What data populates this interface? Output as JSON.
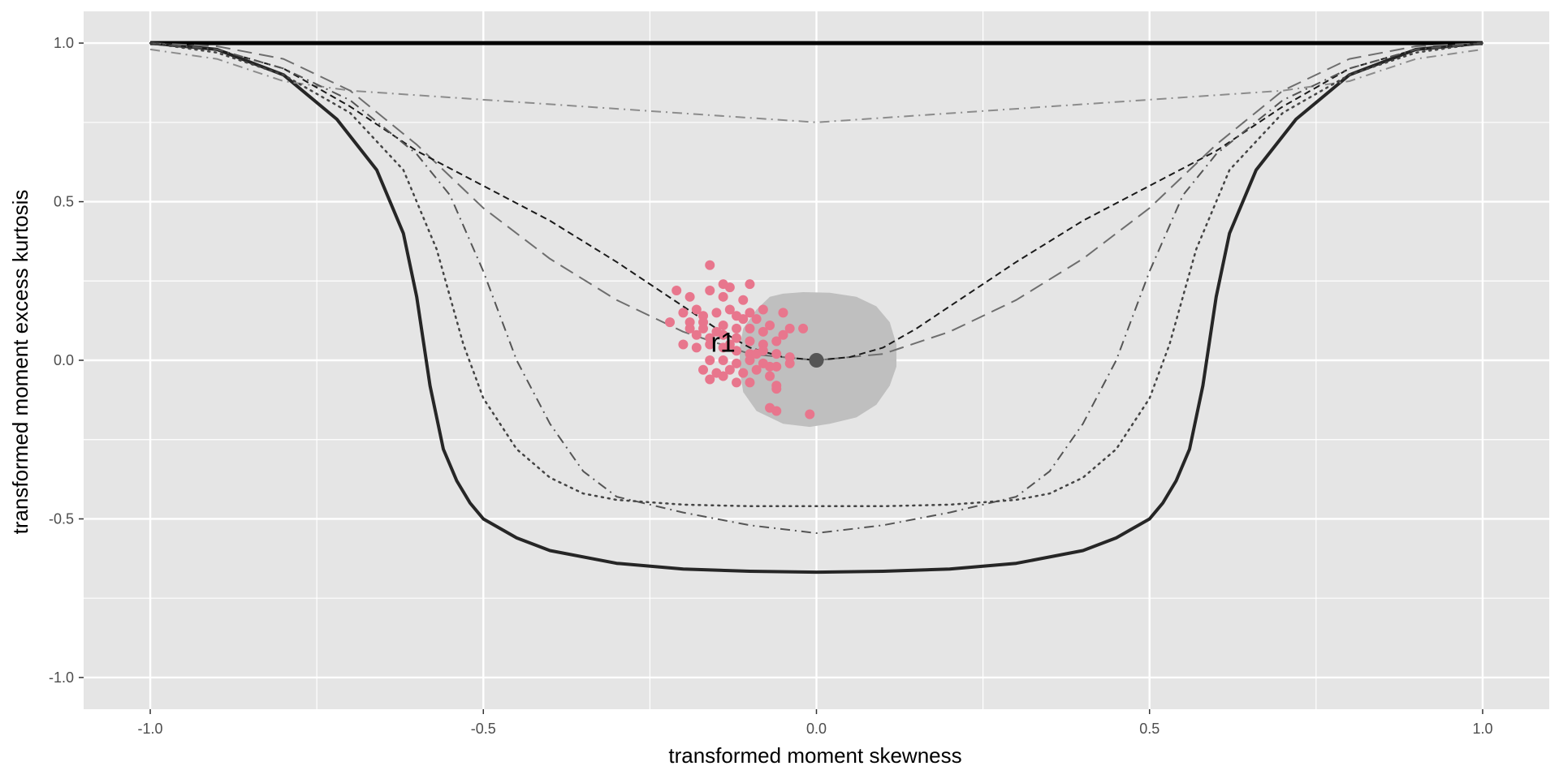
{
  "chart_data": {
    "type": "scatter",
    "xlabel": "transformed moment skewness",
    "ylabel": "transformed moment excess kurtosis",
    "xlim": [
      -1.1,
      1.1
    ],
    "ylim": [
      -1.1,
      1.1
    ],
    "x_ticks": [
      -1.0,
      -0.5,
      0.0,
      0.5,
      1.0
    ],
    "y_ticks": [
      -1.0,
      -0.5,
      0.0,
      0.5,
      1.0
    ],
    "x_tick_labels": [
      "-1.0",
      "-0.5",
      "0.0",
      "0.5",
      "1.0"
    ],
    "y_tick_labels": [
      "-1.0",
      "-0.5",
      "0.0",
      "0.5",
      "1.0"
    ],
    "grid": true,
    "colors": {
      "panel": "#e5e5e5",
      "grid": "#ffffff",
      "points": "#e8768d",
      "region": "#bfbfbf",
      "center": "#555555"
    },
    "annotation": {
      "text": "r1",
      "x": -0.14,
      "y": 0.05
    },
    "center_point": {
      "x": 0.0,
      "y": 0.0
    },
    "region": {
      "fill": "#bfbfbf",
      "points": [
        [
          -0.05,
          0.21
        ],
        [
          -0.02,
          0.215
        ],
        [
          0.02,
          0.213
        ],
        [
          0.06,
          0.2
        ],
        [
          0.09,
          0.17
        ],
        [
          0.11,
          0.12
        ],
        [
          0.12,
          0.05
        ],
        [
          0.12,
          -0.02
        ],
        [
          0.11,
          -0.08
        ],
        [
          0.09,
          -0.14
        ],
        [
          0.06,
          -0.18
        ],
        [
          0.02,
          -0.2
        ],
        [
          -0.01,
          -0.21
        ],
        [
          -0.05,
          -0.2
        ],
        [
          -0.09,
          -0.16
        ],
        [
          -0.11,
          -0.1
        ],
        [
          -0.115,
          -0.03
        ],
        [
          -0.115,
          0.04
        ],
        [
          -0.11,
          0.1
        ],
        [
          -0.09,
          0.16
        ],
        [
          -0.07,
          0.2
        ]
      ]
    },
    "lines": [
      {
        "style": "solid",
        "width": 5,
        "color": "#000000",
        "points": [
          [
            -1.0,
            1.0
          ],
          [
            1.0,
            1.0
          ]
        ]
      },
      {
        "style": "solid",
        "width": 4,
        "color": "#262626",
        "points": [
          [
            -1.0,
            1.0
          ],
          [
            -0.9,
            0.98
          ],
          [
            -0.8,
            0.9
          ],
          [
            -0.72,
            0.76
          ],
          [
            -0.66,
            0.6
          ],
          [
            -0.62,
            0.4
          ],
          [
            -0.6,
            0.2
          ],
          [
            -0.58,
            -0.08
          ],
          [
            -0.56,
            -0.28
          ],
          [
            -0.54,
            -0.38
          ],
          [
            -0.52,
            -0.45
          ],
          [
            -0.5,
            -0.5
          ],
          [
            -0.45,
            -0.56
          ],
          [
            -0.4,
            -0.6
          ],
          [
            -0.3,
            -0.64
          ],
          [
            -0.2,
            -0.658
          ],
          [
            -0.1,
            -0.665
          ],
          [
            0.0,
            -0.668
          ],
          [
            0.1,
            -0.665
          ],
          [
            0.2,
            -0.658
          ],
          [
            0.3,
            -0.64
          ],
          [
            0.4,
            -0.6
          ],
          [
            0.45,
            -0.56
          ],
          [
            0.5,
            -0.5
          ],
          [
            0.52,
            -0.45
          ],
          [
            0.54,
            -0.38
          ],
          [
            0.56,
            -0.28
          ],
          [
            0.58,
            -0.08
          ],
          [
            0.6,
            0.2
          ],
          [
            0.62,
            0.4
          ],
          [
            0.66,
            0.6
          ],
          [
            0.72,
            0.76
          ],
          [
            0.8,
            0.9
          ],
          [
            0.9,
            0.98
          ],
          [
            1.0,
            1.0
          ]
        ]
      },
      {
        "style": "dashdot",
        "width": 2,
        "color": "#8c8c8c",
        "points": [
          [
            -1.0,
            0.98
          ],
          [
            -0.9,
            0.95
          ],
          [
            -0.8,
            0.88
          ],
          [
            -0.7,
            0.85
          ],
          [
            0.0,
            0.75
          ],
          [
            0.7,
            0.85
          ],
          [
            0.8,
            0.88
          ],
          [
            0.9,
            0.95
          ],
          [
            1.0,
            0.98
          ]
        ]
      },
      {
        "style": "longdash",
        "width": 2,
        "color": "#6e6e6e",
        "points": [
          [
            -1.0,
            1.0
          ],
          [
            -0.9,
            0.99
          ],
          [
            -0.8,
            0.95
          ],
          [
            -0.7,
            0.85
          ],
          [
            -0.6,
            0.68
          ],
          [
            -0.5,
            0.48
          ],
          [
            -0.4,
            0.32
          ],
          [
            -0.3,
            0.19
          ],
          [
            -0.2,
            0.09
          ],
          [
            -0.1,
            0.02
          ],
          [
            0.0,
            0.0
          ],
          [
            0.1,
            0.02
          ],
          [
            0.2,
            0.09
          ],
          [
            0.3,
            0.19
          ],
          [
            0.4,
            0.32
          ],
          [
            0.5,
            0.48
          ],
          [
            0.6,
            0.68
          ],
          [
            0.7,
            0.85
          ],
          [
            0.8,
            0.95
          ],
          [
            0.9,
            0.99
          ],
          [
            1.0,
            1.0
          ]
        ]
      },
      {
        "style": "dashed",
        "width": 2,
        "color": "#1a1a1a",
        "points": [
          [
            -1.0,
            1.0
          ],
          [
            -0.9,
            0.98
          ],
          [
            -0.8,
            0.92
          ],
          [
            -0.7,
            0.8
          ],
          [
            -0.6,
            0.66
          ],
          [
            -0.5,
            0.55
          ],
          [
            -0.4,
            0.44
          ],
          [
            -0.3,
            0.31
          ],
          [
            -0.2,
            0.17
          ],
          [
            -0.15,
            0.1
          ],
          [
            -0.1,
            0.04
          ],
          [
            -0.05,
            0.01
          ],
          [
            0.0,
            0.0
          ],
          [
            0.05,
            0.01
          ],
          [
            0.1,
            0.04
          ],
          [
            0.15,
            0.1
          ],
          [
            0.2,
            0.17
          ],
          [
            0.3,
            0.31
          ],
          [
            0.4,
            0.44
          ],
          [
            0.5,
            0.55
          ],
          [
            0.6,
            0.66
          ],
          [
            0.7,
            0.8
          ],
          [
            0.8,
            0.92
          ],
          [
            0.9,
            0.98
          ],
          [
            1.0,
            1.0
          ]
        ]
      },
      {
        "style": "dashdot",
        "width": 2,
        "color": "#555555",
        "points": [
          [
            -1.0,
            1.0
          ],
          [
            -0.9,
            0.98
          ],
          [
            -0.8,
            0.92
          ],
          [
            -0.7,
            0.82
          ],
          [
            -0.6,
            0.65
          ],
          [
            -0.55,
            0.52
          ],
          [
            -0.5,
            0.28
          ],
          [
            -0.45,
            0.0
          ],
          [
            -0.4,
            -0.2
          ],
          [
            -0.35,
            -0.35
          ],
          [
            -0.3,
            -0.43
          ],
          [
            -0.2,
            -0.48
          ],
          [
            -0.1,
            -0.52
          ],
          [
            0.0,
            -0.545
          ],
          [
            0.1,
            -0.52
          ],
          [
            0.2,
            -0.48
          ],
          [
            0.3,
            -0.43
          ],
          [
            0.35,
            -0.35
          ],
          [
            0.4,
            -0.2
          ],
          [
            0.45,
            0.0
          ],
          [
            0.5,
            0.28
          ],
          [
            0.55,
            0.52
          ],
          [
            0.6,
            0.65
          ],
          [
            0.7,
            0.82
          ],
          [
            0.8,
            0.92
          ],
          [
            0.9,
            0.98
          ],
          [
            1.0,
            1.0
          ]
        ]
      },
      {
        "style": "dotted",
        "width": 2.5,
        "color": "#444444",
        "points": [
          [
            -1.0,
            1.0
          ],
          [
            -0.9,
            0.97
          ],
          [
            -0.8,
            0.9
          ],
          [
            -0.7,
            0.78
          ],
          [
            -0.62,
            0.6
          ],
          [
            -0.57,
            0.35
          ],
          [
            -0.53,
            0.05
          ],
          [
            -0.5,
            -0.12
          ],
          [
            -0.45,
            -0.28
          ],
          [
            -0.4,
            -0.37
          ],
          [
            -0.35,
            -0.42
          ],
          [
            -0.3,
            -0.44
          ],
          [
            -0.2,
            -0.455
          ],
          [
            -0.1,
            -0.46
          ],
          [
            0.0,
            -0.46
          ],
          [
            0.1,
            -0.46
          ],
          [
            0.2,
            -0.455
          ],
          [
            0.3,
            -0.44
          ],
          [
            0.35,
            -0.42
          ],
          [
            0.4,
            -0.37
          ],
          [
            0.45,
            -0.28
          ],
          [
            0.5,
            -0.12
          ],
          [
            0.53,
            0.05
          ],
          [
            0.57,
            0.35
          ],
          [
            0.62,
            0.6
          ],
          [
            0.7,
            0.78
          ],
          [
            0.8,
            0.9
          ],
          [
            0.9,
            0.97
          ],
          [
            1.0,
            1.0
          ]
        ]
      }
    ],
    "points": [
      [
        -0.21,
        0.22
      ],
      [
        -0.16,
        0.3
      ],
      [
        -0.19,
        0.2
      ],
      [
        -0.16,
        0.22
      ],
      [
        -0.13,
        0.23
      ],
      [
        -0.14,
        0.24
      ],
      [
        -0.1,
        0.24
      ],
      [
        -0.11,
        0.19
      ],
      [
        -0.14,
        0.2
      ],
      [
        -0.18,
        0.16
      ],
      [
        -0.2,
        0.15
      ],
      [
        -0.22,
        0.12
      ],
      [
        -0.19,
        0.12
      ],
      [
        -0.17,
        0.14
      ],
      [
        -0.15,
        0.15
      ],
      [
        -0.13,
        0.16
      ],
      [
        -0.12,
        0.14
      ],
      [
        -0.1,
        0.15
      ],
      [
        -0.08,
        0.16
      ],
      [
        -0.05,
        0.15
      ],
      [
        -0.09,
        0.13
      ],
      [
        -0.07,
        0.11
      ],
      [
        -0.04,
        0.1
      ],
      [
        -0.02,
        0.1
      ],
      [
        -0.05,
        0.08
      ],
      [
        -0.19,
        0.1
      ],
      [
        -0.17,
        0.1
      ],
      [
        -0.14,
        0.11
      ],
      [
        -0.12,
        0.1
      ],
      [
        -0.1,
        0.1
      ],
      [
        -0.08,
        0.09
      ],
      [
        -0.06,
        0.06
      ],
      [
        -0.18,
        0.08
      ],
      [
        -0.16,
        0.07
      ],
      [
        -0.14,
        0.08
      ],
      [
        -0.12,
        0.07
      ],
      [
        -0.1,
        0.06
      ],
      [
        -0.08,
        0.05
      ],
      [
        -0.2,
        0.05
      ],
      [
        -0.18,
        0.04
      ],
      [
        -0.16,
        0.05
      ],
      [
        -0.14,
        0.04
      ],
      [
        -0.12,
        0.03
      ],
      [
        -0.1,
        0.02
      ],
      [
        -0.08,
        0.03
      ],
      [
        -0.06,
        0.02
      ],
      [
        -0.04,
        0.01
      ],
      [
        -0.16,
        0.0
      ],
      [
        -0.14,
        0.0
      ],
      [
        -0.12,
        -0.01
      ],
      [
        -0.1,
        0.0
      ],
      [
        -0.08,
        -0.01
      ],
      [
        -0.06,
        -0.02
      ],
      [
        -0.04,
        -0.01
      ],
      [
        -0.17,
        -0.03
      ],
      [
        -0.15,
        -0.04
      ],
      [
        -0.13,
        -0.03
      ],
      [
        -0.11,
        -0.04
      ],
      [
        -0.09,
        -0.03
      ],
      [
        -0.07,
        -0.02
      ],
      [
        -0.16,
        -0.06
      ],
      [
        -0.14,
        -0.05
      ],
      [
        -0.12,
        -0.07
      ],
      [
        -0.1,
        -0.07
      ],
      [
        -0.07,
        -0.05
      ],
      [
        -0.06,
        -0.08
      ],
      [
        -0.06,
        -0.09
      ],
      [
        -0.07,
        -0.15
      ],
      [
        -0.06,
        -0.16
      ],
      [
        -0.01,
        -0.17
      ],
      [
        -0.09,
        0.02
      ],
      [
        -0.11,
        0.13
      ],
      [
        -0.13,
        0.05
      ],
      [
        -0.15,
        0.09
      ],
      [
        -0.17,
        0.12
      ]
    ]
  }
}
